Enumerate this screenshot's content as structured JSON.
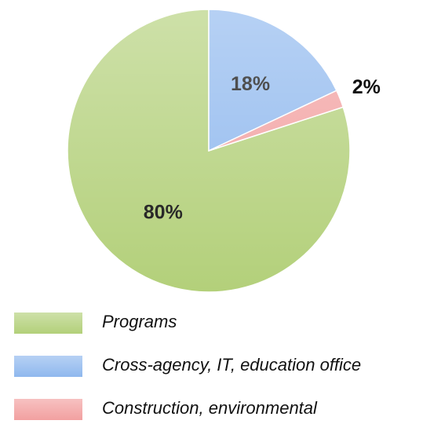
{
  "chart_data": {
    "type": "pie",
    "categories": [
      "Programs",
      "Cross-agency, IT, education office",
      "Construction, environmental"
    ],
    "values": [
      80,
      18,
      2
    ],
    "value_labels": [
      "80%",
      "18%",
      "2%"
    ],
    "colors": [
      "#b3d07a",
      "#8fb8ee",
      "#f2a0a0"
    ],
    "legend": "bottom"
  }
}
